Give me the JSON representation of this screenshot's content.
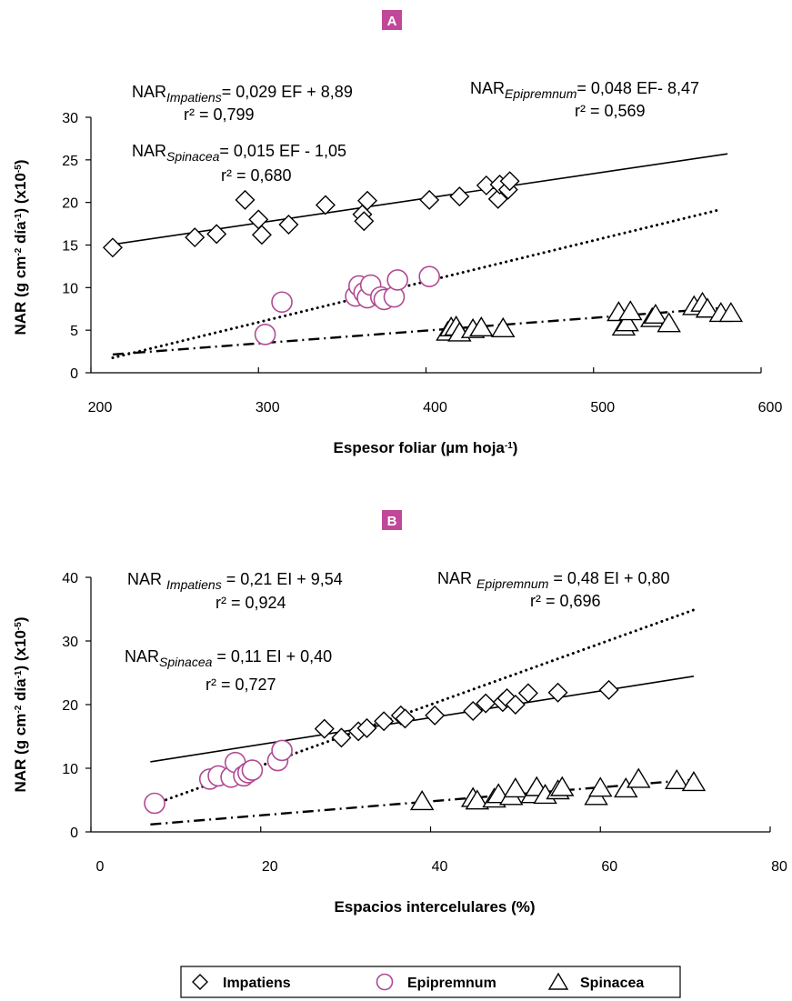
{
  "legend": [
    {
      "label": "Impatiens",
      "marker": "diamond"
    },
    {
      "label": "Epipremnum",
      "marker": "circle"
    },
    {
      "label": "Spinacea",
      "marker": "triangle"
    }
  ],
  "colors": {
    "epipremnum": "#b04a93",
    "badge": "#c1479a",
    "ink": "#000000"
  },
  "chart_data": [
    {
      "panel": "A",
      "type": "scatter",
      "xlabel": "Espesor foliar (µm hoja",
      "xlabel_sup": "-1",
      "xlabel_end": ")",
      "ylabel": "NAR (g cm-2 día-1) (x10-5)",
      "xlim": [
        200,
        600
      ],
      "ylim": [
        0,
        30
      ],
      "xticks": [
        "200",
        "300",
        "400",
        "500",
        "600"
      ],
      "yticks": [
        "0",
        "5",
        "10",
        "15",
        "20",
        "25",
        "30"
      ],
      "equations": [
        {
          "pre": "NAR",
          "sub": "Impatiens",
          "post": "= 0,029 EF + 8,89",
          "r2": "r² = 0,799"
        },
        {
          "pre": "NAR",
          "sub": "Epipremnum",
          "post": "= 0,048 EF- 8,47",
          "r2": "r² = 0,569"
        },
        {
          "pre": "NAR",
          "sub": "Spinacea",
          "post": "= 0,015 EF  - 1,05",
          "r2": "r² = 0,680"
        }
      ],
      "series": [
        {
          "name": "Impatiens",
          "marker": "diamond",
          "trend": "solid",
          "trend_x": [
            213,
            580
          ],
          "points": [
            [
              213,
              14.7
            ],
            [
              262,
              15.9
            ],
            [
              275,
              16.3
            ],
            [
              292,
              20.3
            ],
            [
              300,
              18.0
            ],
            [
              302,
              16.2
            ],
            [
              318,
              17.4
            ],
            [
              340,
              19.7
            ],
            [
              362,
              18.6
            ],
            [
              363,
              17.8
            ],
            [
              365,
              20.2
            ],
            [
              402,
              20.3
            ],
            [
              420,
              20.7
            ],
            [
              436,
              22.0
            ],
            [
              443,
              20.4
            ],
            [
              444,
              22.1
            ],
            [
              449,
              21.5
            ],
            [
              450,
              22.5
            ]
          ]
        },
        {
          "name": "Epipremnum",
          "marker": "circle",
          "trend": "dotted",
          "trend_x": [
            213,
            575
          ],
          "points": [
            [
              304,
              4.5
            ],
            [
              314,
              8.3
            ],
            [
              358,
              9.0
            ],
            [
              360,
              10.2
            ],
            [
              363,
              9.4
            ],
            [
              365,
              8.8
            ],
            [
              367,
              10.3
            ],
            [
              373,
              8.9
            ],
            [
              375,
              8.6
            ],
            [
              381,
              8.9
            ],
            [
              383,
              10.9
            ],
            [
              402,
              11.3
            ]
          ]
        },
        {
          "name": "Spinacea",
          "marker": "triangle",
          "trend": "dashdot",
          "trend_x": [
            213,
            575
          ],
          "points": [
            [
              413,
              4.8
            ],
            [
              415,
              5.3
            ],
            [
              418,
              5.4
            ],
            [
              420,
              4.7
            ],
            [
              428,
              5.1
            ],
            [
              433,
              5.3
            ],
            [
              446,
              5.2
            ],
            [
              515,
              7.1
            ],
            [
              518,
              5.4
            ],
            [
              520,
              5.9
            ],
            [
              522,
              7.2
            ],
            [
              535,
              6.4
            ],
            [
              537,
              6.8
            ],
            [
              545,
              5.8
            ],
            [
              560,
              7.8
            ],
            [
              565,
              8.2
            ],
            [
              568,
              7.5
            ],
            [
              576,
              7.0
            ],
            [
              582,
              7.0
            ]
          ]
        }
      ]
    },
    {
      "panel": "B",
      "type": "scatter",
      "xlabel": "Espacios intercelulares (%)",
      "ylabel": "NAR (g cm-2 día-1) (x10-5)",
      "xlim": [
        0,
        80
      ],
      "ylim": [
        0,
        40
      ],
      "xticks": [
        "0",
        "20",
        "40",
        "60",
        "80"
      ],
      "yticks": [
        "0",
        "10",
        "20",
        "30",
        "40"
      ],
      "equations": [
        {
          "pre": "NAR ",
          "sub": "Impatiens",
          "post": " = 0,21 EI + 9,54",
          "r2": "r² = 0,924"
        },
        {
          "pre": "NAR ",
          "sub": "Epipremnum",
          "post": " = 0,48 EI + 0,80",
          "r2": "r² = 0,696"
        },
        {
          "pre": "NAR",
          "sub": "Spinacea",
          "post": " = 0,11 EI + 0,40",
          "r2": "r² = 0,727"
        }
      ],
      "series": [
        {
          "name": "Impatiens",
          "marker": "diamond",
          "trend": "solid",
          "trend_x": [
            7,
            71
          ],
          "points": [
            [
              27.5,
              16.2
            ],
            [
              29.5,
              14.8
            ],
            [
              31.5,
              15.8
            ],
            [
              32.5,
              16.3
            ],
            [
              34.5,
              17.4
            ],
            [
              36.5,
              18.3
            ],
            [
              37,
              17.8
            ],
            [
              40.5,
              18.3
            ],
            [
              45,
              19.0
            ],
            [
              46.5,
              20.2
            ],
            [
              48.5,
              20.4
            ],
            [
              49,
              21.0
            ],
            [
              50,
              20.0
            ],
            [
              51.5,
              21.8
            ],
            [
              55,
              21.9
            ],
            [
              61,
              22.3
            ]
          ]
        },
        {
          "name": "Epipremnum",
          "marker": "circle",
          "trend": "dotted",
          "trend_x": [
            7,
            71
          ],
          "points": [
            [
              7.5,
              4.5
            ],
            [
              14,
              8.3
            ],
            [
              15,
              8.8
            ],
            [
              16.5,
              8.6
            ],
            [
              17,
              10.9
            ],
            [
              18,
              8.8
            ],
            [
              18.5,
              9.3
            ],
            [
              19,
              9.7
            ],
            [
              22,
              11.2
            ],
            [
              22.5,
              12.8
            ]
          ]
        },
        {
          "name": "Spinacea",
          "marker": "triangle",
          "trend": "dashdot",
          "trend_x": [
            7,
            71
          ],
          "points": [
            [
              39,
              4.8
            ],
            [
              45,
              5.3
            ],
            [
              45.5,
              4.9
            ],
            [
              47.5,
              5.2
            ],
            [
              48,
              5.9
            ],
            [
              49.5,
              5.6
            ],
            [
              50,
              6.8
            ],
            [
              52,
              5.9
            ],
            [
              52.5,
              7.0
            ],
            [
              53.5,
              5.8
            ],
            [
              55,
              6.5
            ],
            [
              55.5,
              7.0
            ],
            [
              59.5,
              5.6
            ],
            [
              60,
              6.9
            ],
            [
              63,
              6.8
            ],
            [
              64.5,
              8.3
            ],
            [
              69,
              8.1
            ],
            [
              71,
              7.8
            ]
          ]
        }
      ]
    }
  ]
}
